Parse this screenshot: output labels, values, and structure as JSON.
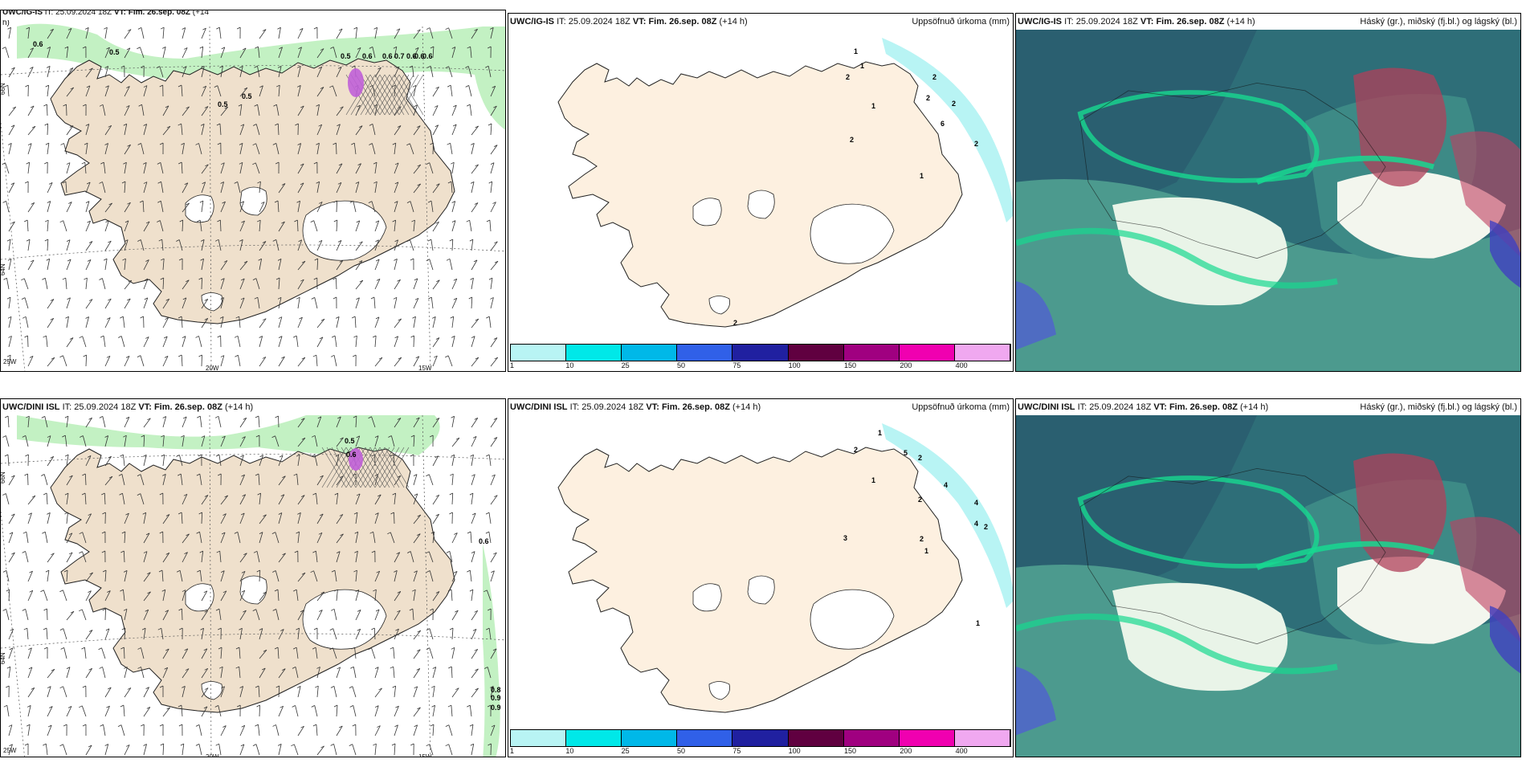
{
  "panels": {
    "p1": {
      "model": "UWC/IG-IS",
      "it_label": "IT:",
      "it": "25.09.2024 18Z",
      "vt": "VT: Fim. 26.sep. 08Z",
      "lead": "(+14",
      "lead2": "h)",
      "right": ""
    },
    "p2": {
      "model": "UWC/IG-IS",
      "it_label": "IT:",
      "it": "25.09.2024 18Z",
      "vt": "VT: Fim. 26.sep. 08Z",
      "lead": "(+14 h)",
      "right": "Uppsöfnuð úrkoma (mm)"
    },
    "p3": {
      "model": "UWC/IG-IS",
      "it_label": "IT:",
      "it": "25.09.2024 18Z",
      "vt": "VT: Fim. 26.sep. 08Z",
      "lead": "(+14 h)",
      "right": "Háský (gr.), miðský (fj.bl.) og lágský (bl.)"
    },
    "p4": {
      "model": "UWC/DINI ISL",
      "it_label": "IT:",
      "it": "25.09.2024 18Z",
      "vt": "VT: Fim. 26.sep. 08Z",
      "lead": "(+14 h)",
      "right": ""
    },
    "p5": {
      "model": "UWC/DINI ISL",
      "it_label": "IT:",
      "it": "25.09.2024 18Z",
      "vt": "VT: Fim. 26.sep. 08Z",
      "lead": "(+14 h)",
      "right": "Uppsöfnuð úrkoma (mm)"
    },
    "p6": {
      "model": "UWC/DINI ISL",
      "it_label": "IT:",
      "it": "25.09.2024 18Z",
      "vt": "VT: Fim. 26.sep. 08Z",
      "lead": "(+14 h)",
      "right": "Háský (gr.), miðský (fj.bl.) og lágský (bl.)"
    }
  },
  "axis": {
    "lon1": "20W",
    "lon2": "15W",
    "lat1": "66N",
    "lat2": "64N",
    "lon0": "25W"
  },
  "colorbar": {
    "ticks": [
      "1",
      "10",
      "25",
      "50",
      "75",
      "100",
      "150",
      "200",
      "400"
    ],
    "colors": [
      "#b8f4f4",
      "#00e8e8",
      "#00b8e8",
      "#3060e8",
      "#2020a0",
      "#600040",
      "#a00080",
      "#f000b0",
      "#f0a8f0"
    ]
  },
  "wind_labels_p1": [
    "0.6",
    "0.5",
    "0.5",
    "0.6",
    "0.6",
    "0.7",
    "0.6",
    "0.6",
    "0.6",
    "0.5",
    "0.5"
  ],
  "wind_labels_p4": [
    "0.5",
    "0.6",
    "0.6",
    "0.8",
    "0.9",
    "0.9"
  ],
  "precip_p2": [
    "1",
    "1",
    "2",
    "2",
    "1",
    "2",
    "2",
    "6",
    "2",
    "2",
    "1",
    "2"
  ],
  "precip_p5": [
    "1",
    "2",
    "5",
    "2",
    "1",
    "4",
    "2",
    "4",
    "4",
    "2",
    "3",
    "2",
    "1",
    "1"
  ]
}
